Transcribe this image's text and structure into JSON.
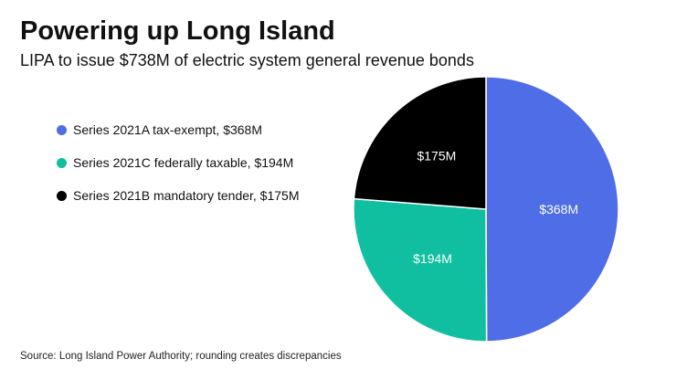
{
  "chart_data": {
    "type": "pie",
    "title": "Powering up Long Island",
    "subtitle": "LIPA to issue $738M of electric system general revenue bonds",
    "slices": [
      {
        "name": "Series 2021A tax-exempt, $368M",
        "value": 368,
        "label": "$368M",
        "color": "#4f6de6"
      },
      {
        "name": "Series 2021C federally taxable, $194M",
        "value": 194,
        "label": "$194M",
        "color": "#0fbf9f"
      },
      {
        "name": "Series 2021B mandatory tender, $175M",
        "value": 175,
        "label": "$175M",
        "color": "#000000"
      }
    ],
    "legend_position": "left",
    "source": "Source: Long Island Power Authority; rounding creates discrepancies"
  }
}
